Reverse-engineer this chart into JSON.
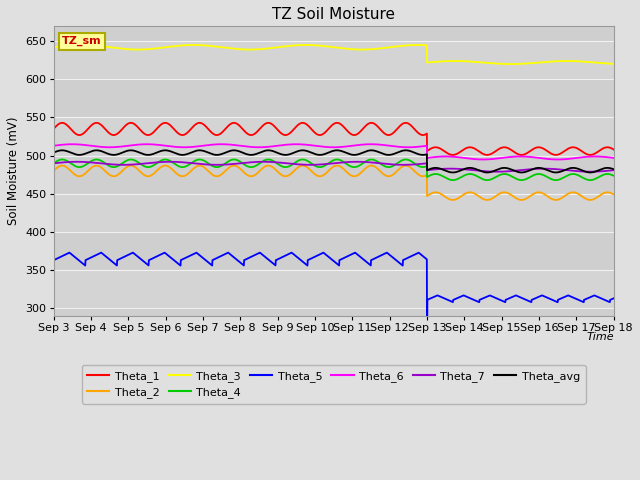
{
  "title": "TZ Soil Moisture",
  "xlabel": "Time",
  "ylabel": "Soil Moisture (mV)",
  "ylim": [
    290,
    670
  ],
  "xlim": [
    0,
    15
  ],
  "tick_labels": [
    "Sep 3",
    "Sep 4",
    "Sep 5",
    "Sep 6",
    "Sep 7",
    "Sep 8",
    "Sep 9",
    "Sep 10",
    "Sep 11",
    "Sep 12",
    "Sep 13",
    "Sep 14",
    "Sep 15",
    "Sep 16",
    "Sep 17",
    "Sep 18"
  ],
  "legend_label": "TZ_sm",
  "drop_day": 10,
  "series": {
    "Theta_1": {
      "color": "#ff0000",
      "base": 535,
      "amp": 8,
      "period": 0.92,
      "post_base": 506,
      "post_amp": 5,
      "post_period": 0.92
    },
    "Theta_2": {
      "color": "#ffa500",
      "base": 480,
      "amp": 7,
      "period": 0.92,
      "post_base": 447,
      "post_amp": 5,
      "post_period": 0.92
    },
    "Theta_3": {
      "color": "#ffff00",
      "base": 642,
      "amp": 3,
      "period": 3.0,
      "post_base": 622,
      "post_amp": 2,
      "post_period": 3.0
    },
    "Theta_4": {
      "color": "#00cc00",
      "base": 490,
      "amp": 5,
      "period": 0.92,
      "post_base": 472,
      "post_amp": 4,
      "post_period": 0.92
    },
    "Theta_5_pre": {
      "color": "#0000ff",
      "base": 363,
      "amp_up": 10,
      "amp_down": 7,
      "period": 0.85
    },
    "Theta_5_post": {
      "color": "#0000ff",
      "post_base": 311,
      "post_amp": 6,
      "post_period": 0.7
    },
    "Theta_6": {
      "color": "#ff00ff",
      "base": 513,
      "amp": 2,
      "period": 2.0,
      "post_base": 497,
      "post_amp": 2,
      "post_period": 2.0
    },
    "Theta_7": {
      "color": "#9900cc",
      "base": 490,
      "amp": 2,
      "period": 2.5,
      "post_base": 481,
      "post_amp": 2,
      "post_period": 2.5
    },
    "Theta_avg": {
      "color": "#000000",
      "base": 504,
      "amp": 3,
      "period": 0.92,
      "post_base": 481,
      "post_amp": 3,
      "post_period": 0.92
    }
  }
}
